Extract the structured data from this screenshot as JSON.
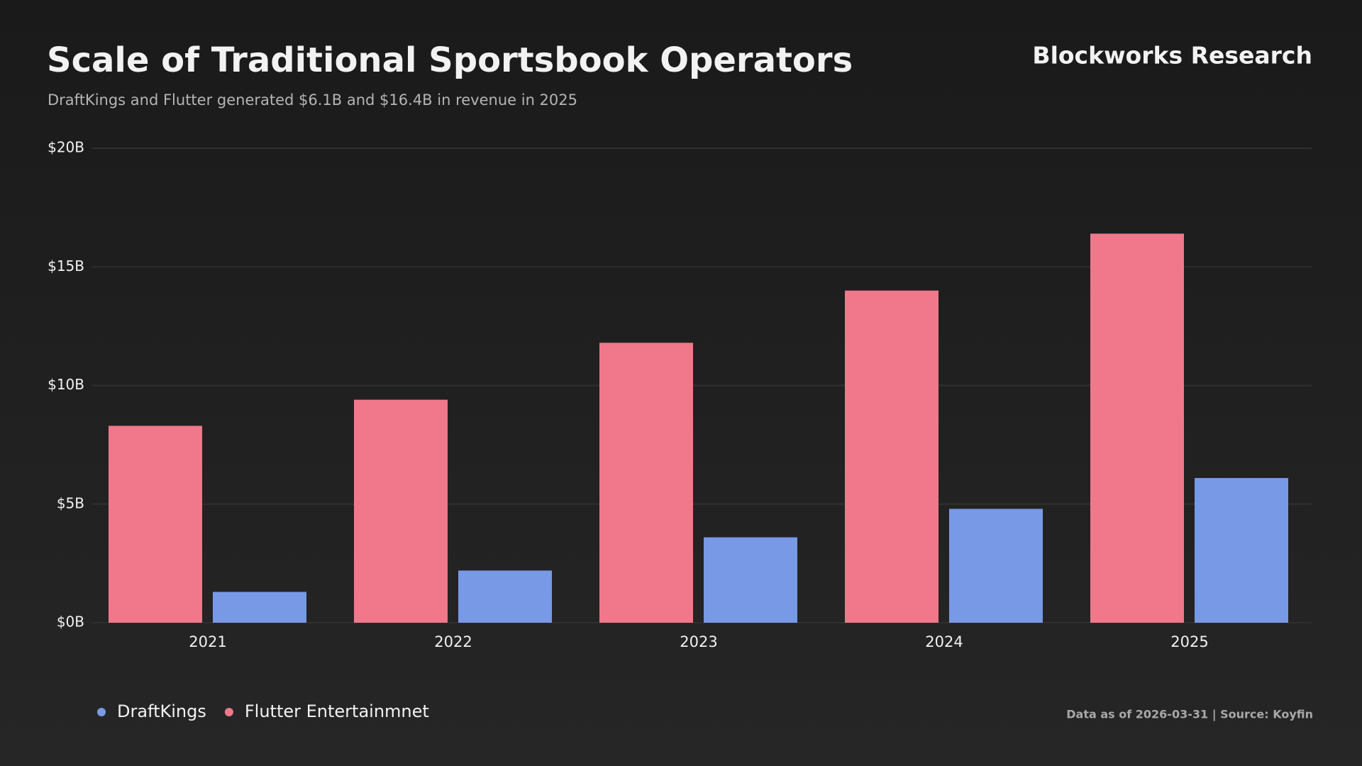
{
  "chart_data": {
    "type": "bar",
    "title": "Scale of Traditional Sportsbook Operators",
    "subtitle": "DraftKings and Flutter generated $6.1B and $16.4B in revenue in 2025",
    "brand": "Blockworks Research",
    "note": "Data as of 2026-03-31 | Source: Koyfin",
    "categories": [
      "2021",
      "2022",
      "2023",
      "2024",
      "2025"
    ],
    "series": [
      {
        "name": "DraftKings",
        "color": "#7799e6",
        "values": [
          1.3,
          2.2,
          3.6,
          4.8,
          6.1
        ]
      },
      {
        "name": "Flutter Entertainmnet",
        "color": "#f0788a",
        "values": [
          8.3,
          9.4,
          11.8,
          14.0,
          16.4
        ]
      }
    ],
    "ylim": [
      0,
      20
    ],
    "yticks": [
      {
        "value": 0,
        "label": "$0B"
      },
      {
        "value": 5,
        "label": "$5B"
      },
      {
        "value": 10,
        "label": "$10B"
      },
      {
        "value": 15,
        "label": "$15B"
      },
      {
        "value": 20,
        "label": "$20B"
      }
    ],
    "grid": true
  }
}
